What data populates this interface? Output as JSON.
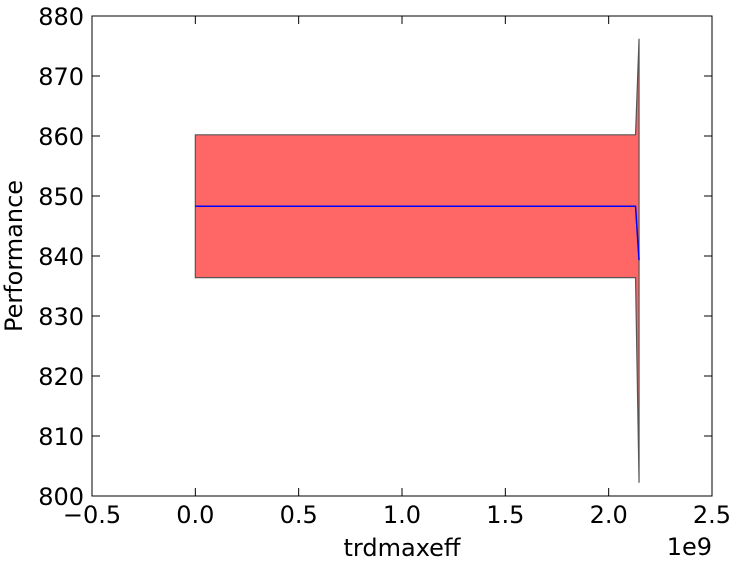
{
  "chart_data": {
    "type": "area",
    "xlabel": "trdmaxeff",
    "ylabel": "Performance",
    "x_offset_label": "1e9",
    "xlim": [
      -0.5,
      2.5
    ],
    "ylim": [
      800,
      880
    ],
    "x_ticks": [
      -0.5,
      0.0,
      0.5,
      1.0,
      1.5,
      2.0,
      2.5
    ],
    "x_tick_labels": [
      "−0.5",
      "0.0",
      "0.5",
      "1.0",
      "1.5",
      "2.0",
      "2.5"
    ],
    "y_ticks": [
      800,
      810,
      820,
      830,
      840,
      850,
      860,
      870,
      880
    ],
    "y_tick_labels": [
      "800",
      "810",
      "820",
      "830",
      "840",
      "850",
      "860",
      "870",
      "880"
    ],
    "grid": false,
    "series": [
      {
        "x": [
          0.0,
          2.13,
          2.147
        ],
        "mean": [
          848.3,
          848.3,
          839.3
        ],
        "upper": [
          860.2,
          860.2,
          876.2
        ],
        "lower": [
          836.4,
          836.4,
          802.2
        ]
      }
    ],
    "colors": {
      "band_fill": "#ff6666",
      "band_edge": "#555555",
      "mean_line": "#0000ff"
    }
  }
}
